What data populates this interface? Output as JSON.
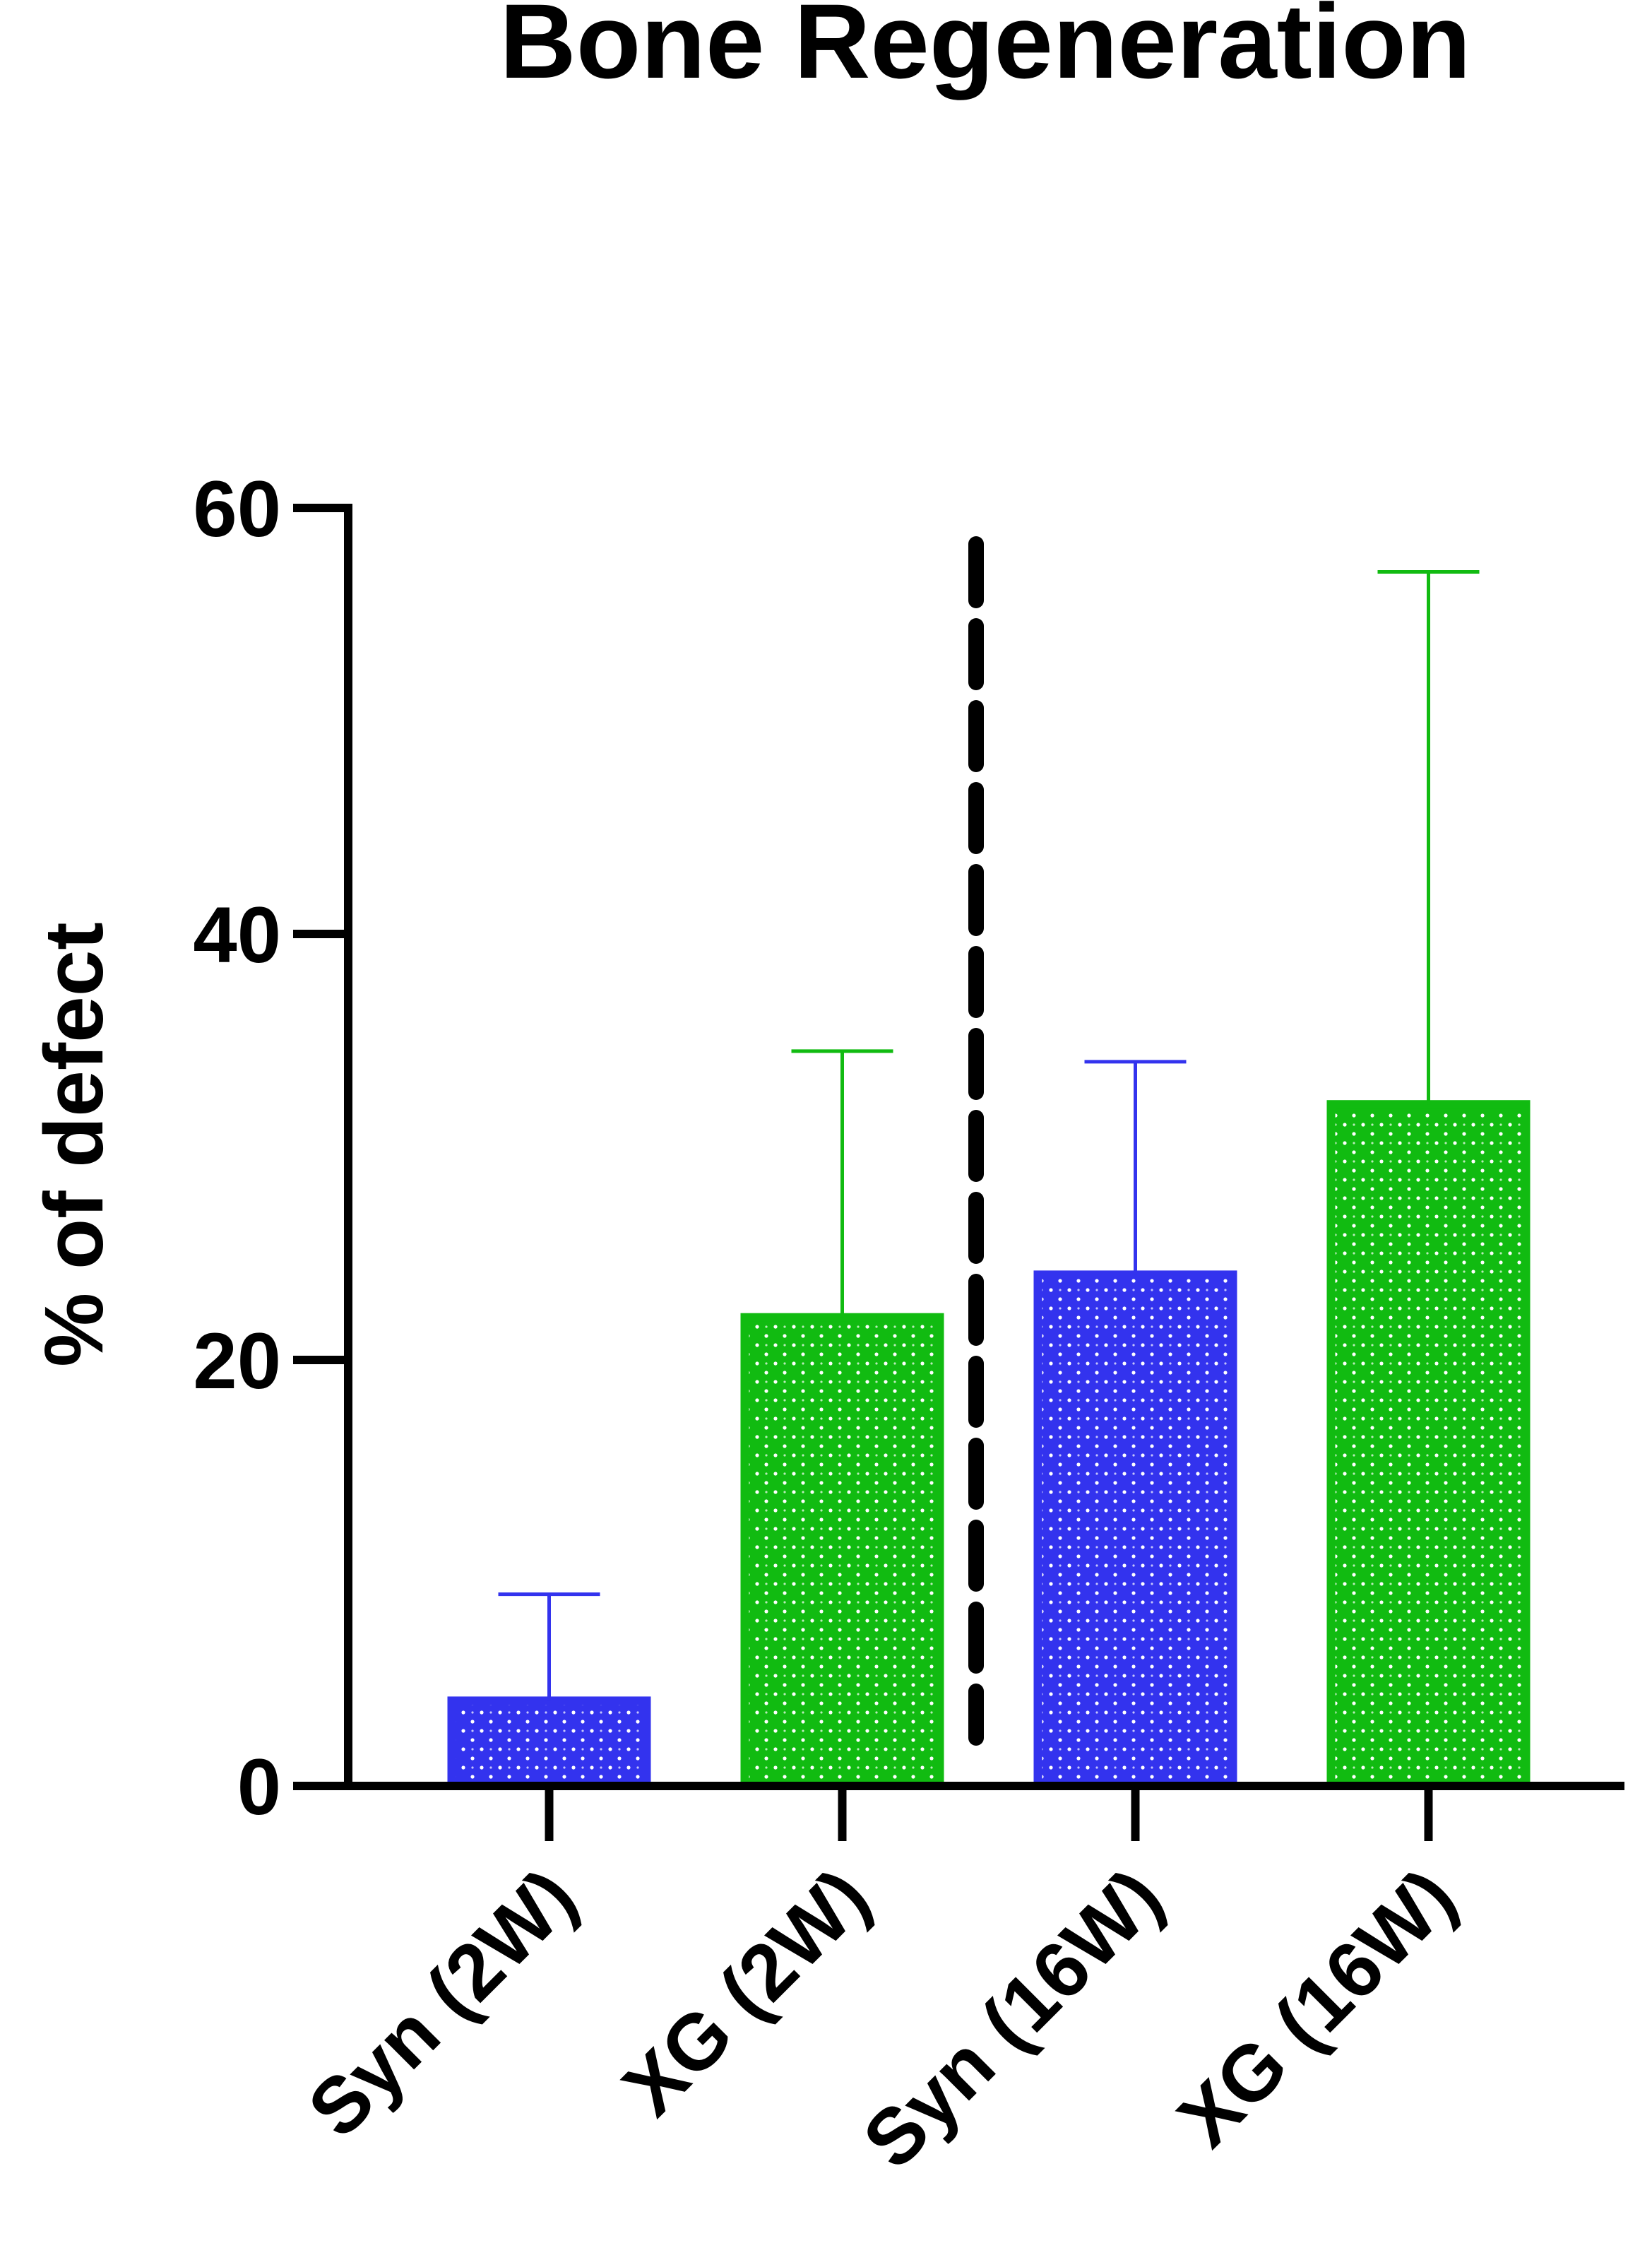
{
  "chart_data": {
    "type": "bar",
    "title": "Bone Regeneration",
    "xlabel": "",
    "ylabel": "% of defect",
    "ylim": [
      0,
      60
    ],
    "yticks": [
      0,
      20,
      40,
      60
    ],
    "categories": [
      "Syn (2W)",
      "XG (2W)",
      "Syn (16W)",
      "XG (16W)"
    ],
    "values": [
      4,
      22,
      24,
      32
    ],
    "error_upper": [
      9,
      34.5,
      34,
      57
    ],
    "bar_colors": [
      "#3333ee",
      "#11bb11",
      "#3333ee",
      "#11bb11"
    ],
    "pattern": "dotted",
    "divider": {
      "between": [
        "XG (2W)",
        "Syn (16W)"
      ],
      "style": "dashed",
      "color": "#000000"
    },
    "grid": false,
    "legend": "none"
  }
}
